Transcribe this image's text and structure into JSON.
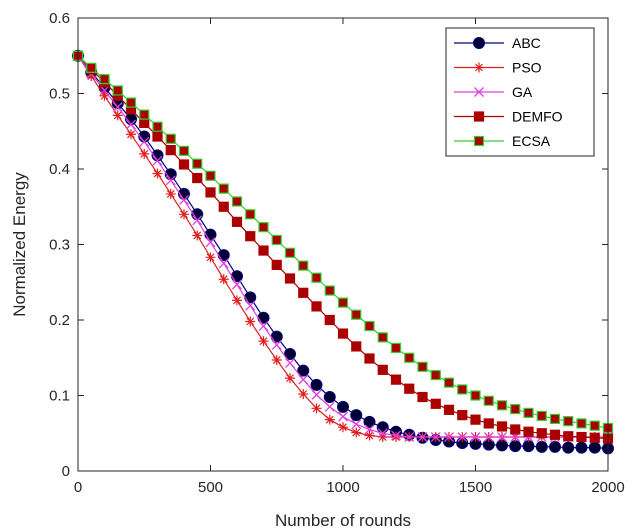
{
  "chart_data": {
    "type": "line",
    "title": "",
    "xlabel": "Number of rounds",
    "ylabel": "Normalized Energy",
    "xlim": [
      0,
      2000
    ],
    "ylim": [
      0,
      0.6
    ],
    "xticks": [
      0,
      500,
      1000,
      1500,
      2000
    ],
    "yticks": [
      0,
      0.1,
      0.2,
      0.3,
      0.4,
      0.5,
      0.6
    ],
    "xtick_labels": [
      "0",
      "500",
      "1000",
      "1500",
      "2000"
    ],
    "ytick_labels": [
      "0",
      "0.1",
      "0.2",
      "0.3",
      "0.4",
      "0.5",
      "0.6"
    ],
    "grid": false,
    "legend_position": "top-right",
    "x": [
      0,
      50,
      100,
      150,
      200,
      250,
      300,
      350,
      400,
      450,
      500,
      550,
      600,
      650,
      700,
      750,
      800,
      850,
      900,
      950,
      1000,
      1050,
      1100,
      1150,
      1200,
      1250,
      1300,
      1350,
      1400,
      1450,
      1500,
      1550,
      1600,
      1650,
      1700,
      1750,
      1800,
      1850,
      1900,
      1950,
      2000
    ],
    "series": [
      {
        "name": "ABC",
        "color": "#000080",
        "marker": "circle",
        "values": [
          0.55,
          0.528,
          0.508,
          0.487,
          0.466,
          0.443,
          0.418,
          0.393,
          0.367,
          0.34,
          0.313,
          0.286,
          0.258,
          0.23,
          0.203,
          0.178,
          0.155,
          0.133,
          0.114,
          0.098,
          0.085,
          0.074,
          0.065,
          0.058,
          0.052,
          0.048,
          0.044,
          0.041,
          0.039,
          0.037,
          0.036,
          0.035,
          0.034,
          0.033,
          0.033,
          0.032,
          0.032,
          0.031,
          0.031,
          0.031,
          0.03
        ]
      },
      {
        "name": "PSO",
        "color": "#e02020",
        "marker": "star",
        "values": [
          0.55,
          0.523,
          0.497,
          0.471,
          0.446,
          0.42,
          0.394,
          0.367,
          0.34,
          0.312,
          0.283,
          0.254,
          0.226,
          0.198,
          0.172,
          0.147,
          0.123,
          0.102,
          0.083,
          0.068,
          0.058,
          0.051,
          0.047,
          0.045,
          0.045,
          0.045,
          0.045,
          0.045,
          0.045,
          0.045,
          0.045,
          0.045,
          0.045,
          0.045,
          0.045,
          0.045,
          0.045,
          0.045,
          0.045,
          0.045,
          0.045
        ]
      },
      {
        "name": "GA",
        "color": "#e040e0",
        "marker": "x",
        "values": [
          0.55,
          0.526,
          0.504,
          0.482,
          0.459,
          0.436,
          0.411,
          0.385,
          0.359,
          0.332,
          0.303,
          0.275,
          0.247,
          0.219,
          0.192,
          0.167,
          0.143,
          0.121,
          0.101,
          0.085,
          0.072,
          0.062,
          0.055,
          0.05,
          0.047,
          0.045,
          0.045,
          0.045,
          0.045,
          0.045,
          0.045,
          0.045,
          0.045,
          0.045,
          0.045,
          0.045,
          0.045,
          0.045,
          0.045,
          0.045,
          0.045
        ]
      },
      {
        "name": "DEMFO",
        "color": "#aa0000",
        "marker": "square",
        "values": [
          0.55,
          0.532,
          0.515,
          0.497,
          0.479,
          0.461,
          0.443,
          0.425,
          0.406,
          0.388,
          0.369,
          0.35,
          0.33,
          0.311,
          0.292,
          0.273,
          0.255,
          0.236,
          0.218,
          0.2,
          0.182,
          0.165,
          0.149,
          0.134,
          0.121,
          0.109,
          0.098,
          0.089,
          0.081,
          0.074,
          0.068,
          0.063,
          0.059,
          0.055,
          0.052,
          0.05,
          0.048,
          0.046,
          0.045,
          0.044,
          0.043
        ]
      },
      {
        "name": "ECSA",
        "color": "#30d030",
        "marker": "square",
        "values": [
          0.55,
          0.534,
          0.519,
          0.504,
          0.488,
          0.472,
          0.456,
          0.44,
          0.424,
          0.407,
          0.391,
          0.374,
          0.357,
          0.34,
          0.323,
          0.306,
          0.289,
          0.272,
          0.256,
          0.239,
          0.223,
          0.207,
          0.192,
          0.177,
          0.163,
          0.15,
          0.138,
          0.127,
          0.117,
          0.108,
          0.1,
          0.093,
          0.087,
          0.082,
          0.077,
          0.073,
          0.069,
          0.066,
          0.063,
          0.06,
          0.057
        ]
      }
    ]
  }
}
